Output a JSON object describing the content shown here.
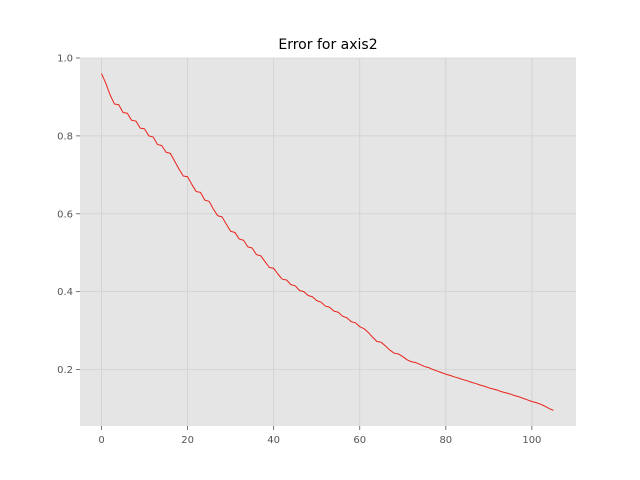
{
  "chart_data": {
    "type": "line",
    "title": "Error for axis2",
    "xlabel": "",
    "ylabel": "",
    "xlim": [
      -5,
      110.25
    ],
    "ylim": [
      0.055,
      1.0
    ],
    "xticks": [
      0,
      20,
      40,
      60,
      80,
      100
    ],
    "yticks": [
      0.2,
      0.4,
      0.6,
      0.8,
      1.0
    ],
    "xtick_labels": [
      "0",
      "20",
      "40",
      "60",
      "80",
      "100"
    ],
    "ytick_labels": [
      "0.2",
      "0.4",
      "0.6",
      "0.8",
      "1.0"
    ],
    "grid": true,
    "colors": {
      "line": "#e8221a",
      "plot_bg": "#e5e5e5",
      "grid": "#d0d0d0"
    },
    "series": [
      {
        "x": [
          0,
          1,
          2,
          3,
          4,
          5,
          6,
          7,
          8,
          9,
          10,
          11,
          12,
          13,
          14,
          15,
          16,
          17,
          18,
          19,
          20,
          21,
          22,
          23,
          24,
          25,
          26,
          27,
          28,
          29,
          30,
          31,
          32,
          33,
          34,
          35,
          36,
          37,
          38,
          39,
          40,
          41,
          42,
          43,
          44,
          45,
          46,
          47,
          48,
          49,
          50,
          51,
          52,
          53,
          54,
          55,
          56,
          57,
          58,
          59,
          60,
          61,
          62,
          63,
          64,
          65,
          66,
          67,
          68,
          69,
          70,
          71,
          72,
          73,
          74,
          75,
          76,
          77,
          78,
          79,
          80,
          81,
          82,
          83,
          84,
          85,
          86,
          87,
          88,
          89,
          90,
          91,
          92,
          93,
          94,
          95,
          96,
          97,
          98,
          99,
          100,
          101,
          102,
          103,
          104,
          105
        ],
        "y": [
          0.96,
          0.935,
          0.905,
          0.882,
          0.88,
          0.86,
          0.858,
          0.84,
          0.838,
          0.82,
          0.818,
          0.8,
          0.797,
          0.778,
          0.775,
          0.758,
          0.755,
          0.735,
          0.715,
          0.697,
          0.695,
          0.675,
          0.657,
          0.655,
          0.635,
          0.632,
          0.612,
          0.595,
          0.592,
          0.573,
          0.555,
          0.552,
          0.535,
          0.532,
          0.515,
          0.512,
          0.495,
          0.492,
          0.477,
          0.462,
          0.46,
          0.445,
          0.432,
          0.43,
          0.418,
          0.415,
          0.403,
          0.4,
          0.39,
          0.387,
          0.377,
          0.373,
          0.363,
          0.36,
          0.35,
          0.347,
          0.337,
          0.333,
          0.323,
          0.32,
          0.31,
          0.305,
          0.295,
          0.283,
          0.272,
          0.27,
          0.26,
          0.25,
          0.242,
          0.24,
          0.233,
          0.225,
          0.22,
          0.218,
          0.213,
          0.208,
          0.205,
          0.2,
          0.196,
          0.192,
          0.188,
          0.185,
          0.181,
          0.178,
          0.174,
          0.171,
          0.167,
          0.164,
          0.16,
          0.157,
          0.153,
          0.15,
          0.147,
          0.143,
          0.14,
          0.137,
          0.133,
          0.13,
          0.126,
          0.122,
          0.118,
          0.115,
          0.111,
          0.106,
          0.1,
          0.095
        ]
      }
    ]
  }
}
